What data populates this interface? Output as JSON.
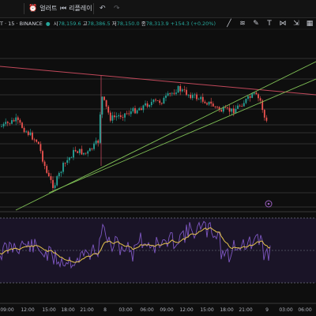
{
  "toolbar": {
    "alert_label": "얼러트",
    "replay_label": "리플레이"
  },
  "symbol_info": {
    "symbol": "T · 15 · BINANCE",
    "open_label": "시",
    "open_value": "78,159.6",
    "high_label": "고",
    "high_value": "78,386.5",
    "low_label": "저",
    "low_value": "78,150.0",
    "close_label": "종",
    "close_value": "78,313.9",
    "change": "+154.3 (+0.20%)"
  },
  "x_axis_labels": [
    "09:00",
    "12:00",
    "15:00",
    "18:00",
    "21:00",
    "8",
    "03:00",
    "06:00",
    "09:00",
    "12:00",
    "15:00",
    "18:00",
    "21:00",
    "9",
    "03:00",
    "06:00"
  ],
  "colors": {
    "up": "#26a69a",
    "down": "#ef5350",
    "background": "#0e0e0e",
    "trend_green": "#7fbf55",
    "resistance_red": "#c0485a",
    "rsi_line": "#7e57c2",
    "rsi_ma": "#e6c44d"
  },
  "icons": [
    "alarm-clock-icon",
    "replay-icon",
    "undo-icon",
    "redo-icon",
    "trend-line-icon",
    "fib-icon",
    "brush-icon",
    "text-icon",
    "pattern-icon",
    "measure-icon",
    "ruler-icon"
  ]
}
